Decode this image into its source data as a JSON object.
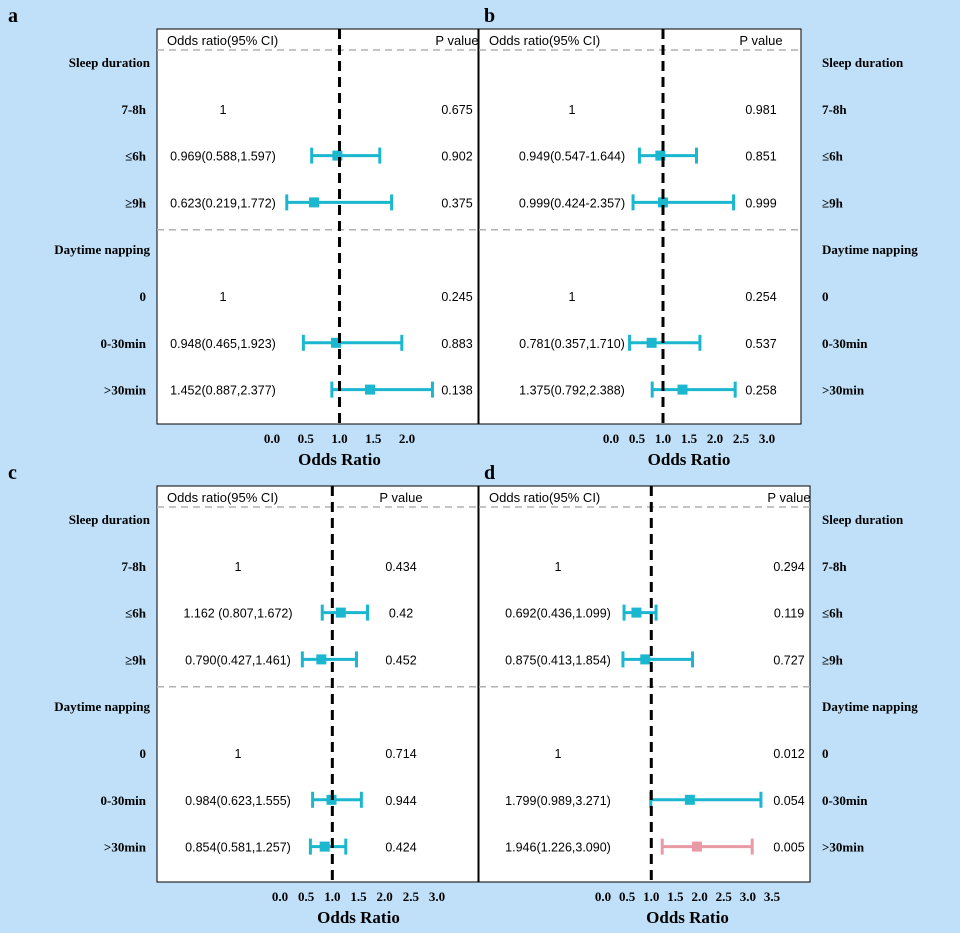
{
  "chart_data": [
    {
      "panel": "a",
      "type": "forest",
      "header_or": "Odds ratio(95% CI)",
      "header_p": "P value",
      "labels_side": "left",
      "xlabel": "Odds Ratio",
      "ticks": [
        "0.0",
        "0.5",
        "1.0",
        "1.5",
        "2.0"
      ],
      "xlim": [
        0,
        2.0
      ],
      "ref_line": 1,
      "groups": [
        {
          "title": "Sleep duration",
          "rows": [
            {
              "label": "7-8h",
              "or_text": "1",
              "p": "0.675"
            },
            {
              "label": "≤6h",
              "or_text": "0.969(0.588,1.597)",
              "p": "0.902",
              "est": 0.969,
              "lo": 0.588,
              "hi": 1.597
            },
            {
              "label": "≥9h",
              "or_text": "0.623(0.219,1.772)",
              "p": "0.375",
              "est": 0.623,
              "lo": 0.219,
              "hi": 1.772
            }
          ]
        },
        {
          "title": "Daytime napping",
          "rows": [
            {
              "label": "0",
              "or_text": "1",
              "p": "0.245"
            },
            {
              "label": "0-30min",
              "or_text": "0.948(0.465,1.923)",
              "p": "0.883",
              "est": 0.948,
              "lo": 0.465,
              "hi": 1.923
            },
            {
              "label": ">30min",
              "or_text": "1.452(0.887,2.377)",
              "p": "0.138",
              "est": 1.452,
              "lo": 0.887,
              "hi": 2.377
            }
          ]
        }
      ]
    },
    {
      "panel": "b",
      "type": "forest",
      "header_or": "Odds ratio(95% CI)",
      "header_p": "P value",
      "labels_side": "right",
      "xlabel": "Odds Ratio",
      "ticks": [
        "0.0",
        "0.5",
        "1.0",
        "1.5",
        "2.0",
        "2.5",
        "3.0"
      ],
      "xlim": [
        0,
        3.0
      ],
      "ref_line": 1,
      "groups": [
        {
          "title": "Sleep duration",
          "rows": [
            {
              "label": "7-8h",
              "or_text": "1",
              "p": "0.981"
            },
            {
              "label": "≤6h",
              "or_text": "0.949(0.547-1.644)",
              "p": "0.851",
              "est": 0.949,
              "lo": 0.547,
              "hi": 1.644
            },
            {
              "label": "≥9h",
              "or_text": "0.999(0.424-2.357)",
              "p": "0.999",
              "est": 0.999,
              "lo": 0.424,
              "hi": 2.357
            }
          ]
        },
        {
          "title": "Daytime napping",
          "rows": [
            {
              "label": "0",
              "or_text": "1",
              "p": "0.254"
            },
            {
              "label": "0-30min",
              "or_text": "0.781(0.357,1.710)",
              "p": "0.537",
              "est": 0.781,
              "lo": 0.357,
              "hi": 1.71
            },
            {
              "label": ">30min",
              "or_text": "1.375(0.792,2.388)",
              "p": "0.258",
              "est": 1.375,
              "lo": 0.792,
              "hi": 2.388
            }
          ]
        }
      ]
    },
    {
      "panel": "c",
      "type": "forest",
      "header_or": "Odds ratio(95% CI)",
      "header_p": "P value",
      "labels_side": "left",
      "xlabel": "Odds Ratio",
      "ticks": [
        "0.0",
        "0.5",
        "1.0",
        "1.5",
        "2.0",
        "2.5",
        "3.0"
      ],
      "xlim": [
        0,
        3.0
      ],
      "ref_line": 1,
      "groups": [
        {
          "title": "Sleep duration",
          "rows": [
            {
              "label": "7-8h",
              "or_text": "1",
              "p": "0.434"
            },
            {
              "label": "≤6h",
              "or_text": "1.162 (0.807,1.672)",
              "p": "0.42",
              "est": 1.162,
              "lo": 0.807,
              "hi": 1.672
            },
            {
              "label": "≥9h",
              "or_text": "0.790(0.427,1.461)",
              "p": "0.452",
              "est": 0.79,
              "lo": 0.427,
              "hi": 1.461
            }
          ]
        },
        {
          "title": "Daytime napping",
          "rows": [
            {
              "label": "0",
              "or_text": "1",
              "p": "0.714"
            },
            {
              "label": "0-30min",
              "or_text": "0.984(0.623,1.555)",
              "p": "0.944",
              "est": 0.984,
              "lo": 0.623,
              "hi": 1.555
            },
            {
              "label": ">30min",
              "or_text": "0.854(0.581,1.257)",
              "p": "0.424",
              "est": 0.854,
              "lo": 0.581,
              "hi": 1.257
            }
          ]
        }
      ]
    },
    {
      "panel": "d",
      "type": "forest",
      "header_or": "Odds ratio(95% CI)",
      "header_p": "P value",
      "labels_side": "right",
      "xlabel": "Odds Ratio",
      "ticks": [
        "0.0",
        "0.5",
        "1.0",
        "1.5",
        "2.0",
        "2.5",
        "3.0",
        "3.5"
      ],
      "xlim": [
        0,
        3.5
      ],
      "ref_line": 1,
      "groups": [
        {
          "title": "Sleep duration",
          "rows": [
            {
              "label": "7-8h",
              "or_text": "1",
              "p": "0.294"
            },
            {
              "label": "≤6h",
              "or_text": "0.692(0.436,1.099)",
              "p": "0.119",
              "est": 0.692,
              "lo": 0.436,
              "hi": 1.099
            },
            {
              "label": "≥9h",
              "or_text": "0.875(0.413,1.854)",
              "p": "0.727",
              "est": 0.875,
              "lo": 0.413,
              "hi": 1.854
            }
          ]
        },
        {
          "title": "Daytime napping",
          "rows": [
            {
              "label": "0",
              "or_text": "1",
              "p": "0.012"
            },
            {
              "label": "0-30min",
              "or_text": "1.799(0.989,3.271)",
              "p": "0.054",
              "est": 1.799,
              "lo": 0.989,
              "hi": 3.271
            },
            {
              "label": ">30min",
              "or_text": "1.946(1.226,3.090)",
              "p": "0.005",
              "est": 1.946,
              "lo": 1.226,
              "hi": 3.09,
              "significant": true
            }
          ]
        }
      ]
    }
  ],
  "colors": {
    "background": "#bfe0f8",
    "panel": "#ffffff",
    "ci": "#1ab7cf",
    "significant": "#e99aa4",
    "dashed": "#b0b0b0",
    "ref": "#000000"
  }
}
